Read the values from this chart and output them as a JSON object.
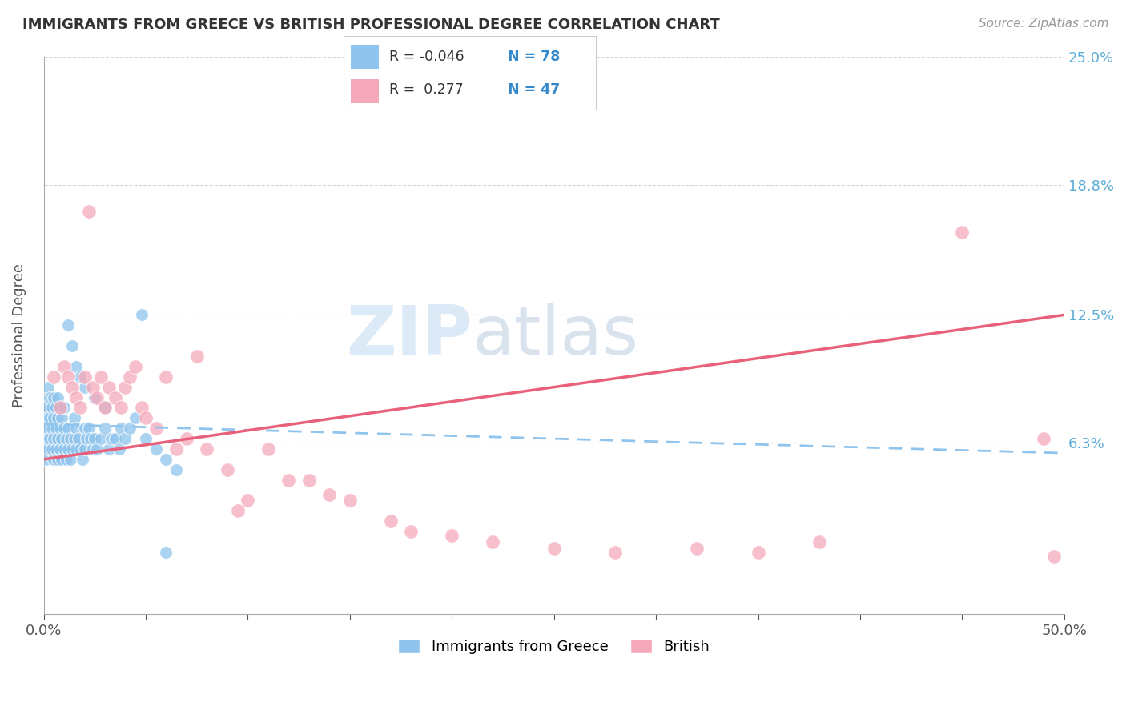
{
  "title": "IMMIGRANTS FROM GREECE VS BRITISH PROFESSIONAL DEGREE CORRELATION CHART",
  "source_text": "Source: ZipAtlas.com",
  "ylabel": "Professional Degree",
  "xlim": [
    0.0,
    0.5
  ],
  "ylim": [
    -0.02,
    0.25
  ],
  "xticks": [
    0.0,
    0.05,
    0.1,
    0.15,
    0.2,
    0.25,
    0.3,
    0.35,
    0.4,
    0.45,
    0.5
  ],
  "xtick_labels": [
    "0.0%",
    "",
    "",
    "",
    "",
    "",
    "",
    "",
    "",
    "",
    "50.0%"
  ],
  "ytick_labels_right": [
    "6.3%",
    "12.5%",
    "18.8%",
    "25.0%"
  ],
  "yticks_right": [
    0.063,
    0.125,
    0.188,
    0.25
  ],
  "color_blue": "#8EC4ED",
  "color_pink": "#F5A8BA",
  "watermark_zip": "ZIP",
  "watermark_atlas": "atlas",
  "blue_x": [
    0.001,
    0.001,
    0.001,
    0.002,
    0.002,
    0.002,
    0.002,
    0.003,
    0.003,
    0.003,
    0.004,
    0.004,
    0.004,
    0.005,
    0.005,
    0.005,
    0.005,
    0.006,
    0.006,
    0.006,
    0.007,
    0.007,
    0.007,
    0.007,
    0.008,
    0.008,
    0.008,
    0.009,
    0.009,
    0.009,
    0.01,
    0.01,
    0.01,
    0.011,
    0.011,
    0.012,
    0.012,
    0.013,
    0.013,
    0.014,
    0.015,
    0.015,
    0.016,
    0.016,
    0.017,
    0.018,
    0.019,
    0.02,
    0.02,
    0.021,
    0.022,
    0.023,
    0.024,
    0.025,
    0.026,
    0.028,
    0.03,
    0.032,
    0.033,
    0.035,
    0.037,
    0.038,
    0.04,
    0.042,
    0.045,
    0.048,
    0.05,
    0.055,
    0.06,
    0.065,
    0.012,
    0.014,
    0.016,
    0.018,
    0.02,
    0.025,
    0.03,
    0.06
  ],
  "blue_y": [
    0.055,
    0.065,
    0.075,
    0.06,
    0.07,
    0.08,
    0.09,
    0.065,
    0.075,
    0.085,
    0.06,
    0.07,
    0.08,
    0.055,
    0.065,
    0.075,
    0.085,
    0.06,
    0.07,
    0.08,
    0.055,
    0.065,
    0.075,
    0.085,
    0.06,
    0.07,
    0.08,
    0.055,
    0.065,
    0.075,
    0.06,
    0.07,
    0.08,
    0.055,
    0.065,
    0.06,
    0.07,
    0.055,
    0.065,
    0.06,
    0.065,
    0.075,
    0.06,
    0.07,
    0.065,
    0.06,
    0.055,
    0.06,
    0.07,
    0.065,
    0.07,
    0.065,
    0.06,
    0.065,
    0.06,
    0.065,
    0.07,
    0.06,
    0.065,
    0.065,
    0.06,
    0.07,
    0.065,
    0.07,
    0.075,
    0.125,
    0.065,
    0.06,
    0.055,
    0.05,
    0.12,
    0.11,
    0.1,
    0.095,
    0.09,
    0.085,
    0.08,
    0.01
  ],
  "pink_x": [
    0.005,
    0.008,
    0.01,
    0.012,
    0.014,
    0.016,
    0.018,
    0.02,
    0.022,
    0.024,
    0.026,
    0.028,
    0.03,
    0.032,
    0.035,
    0.038,
    0.04,
    0.042,
    0.045,
    0.048,
    0.05,
    0.055,
    0.06,
    0.065,
    0.07,
    0.075,
    0.08,
    0.09,
    0.095,
    0.1,
    0.11,
    0.12,
    0.13,
    0.14,
    0.15,
    0.17,
    0.18,
    0.2,
    0.22,
    0.25,
    0.28,
    0.32,
    0.35,
    0.38,
    0.45,
    0.49,
    0.495
  ],
  "pink_y": [
    0.095,
    0.08,
    0.1,
    0.095,
    0.09,
    0.085,
    0.08,
    0.095,
    0.175,
    0.09,
    0.085,
    0.095,
    0.08,
    0.09,
    0.085,
    0.08,
    0.09,
    0.095,
    0.1,
    0.08,
    0.075,
    0.07,
    0.095,
    0.06,
    0.065,
    0.105,
    0.06,
    0.05,
    0.03,
    0.035,
    0.06,
    0.045,
    0.045,
    0.038,
    0.035,
    0.025,
    0.02,
    0.018,
    0.015,
    0.012,
    0.01,
    0.012,
    0.01,
    0.015,
    0.165,
    0.065,
    0.008
  ],
  "trend_blue_x0": 0.0,
  "trend_blue_x1": 0.5,
  "trend_blue_y0": 0.072,
  "trend_blue_y1": 0.058,
  "trend_pink_x0": 0.0,
  "trend_pink_x1": 0.5,
  "trend_pink_y0": 0.055,
  "trend_pink_y1": 0.125
}
